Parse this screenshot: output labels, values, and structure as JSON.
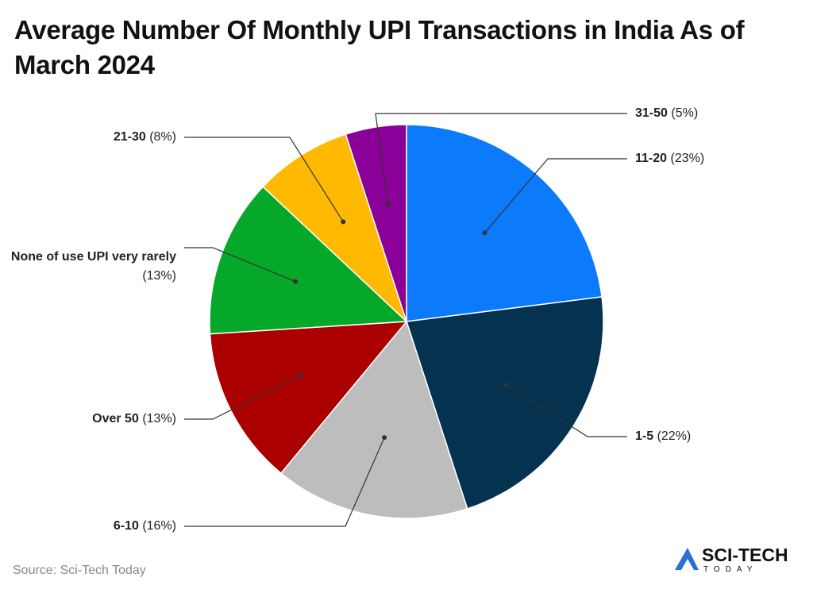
{
  "chart_data": {
    "type": "pie",
    "title": "Average Number Of Monthly UPI Transactions in India As of March 2024",
    "categories": [
      "11-20",
      "1-5",
      "6-10",
      "Over 50",
      "None of use UPI very rarely",
      "21-30",
      "31-50"
    ],
    "values": [
      23,
      22,
      16,
      13,
      13,
      8,
      5
    ],
    "value_labels": [
      "(23%)",
      "(22%)",
      "(16%)",
      "(13%)",
      "(13%)",
      "(8%)",
      "(5%)"
    ],
    "colors": [
      "#0b7bfc",
      "#04324f",
      "#bdbdbd",
      "#ab0000",
      "#05a829",
      "#ffb900",
      "#8b0099"
    ],
    "source": "Source: Sci-Tech Today"
  },
  "logo": {
    "title": "SCI-TECH",
    "subtitle": "TODAY"
  }
}
